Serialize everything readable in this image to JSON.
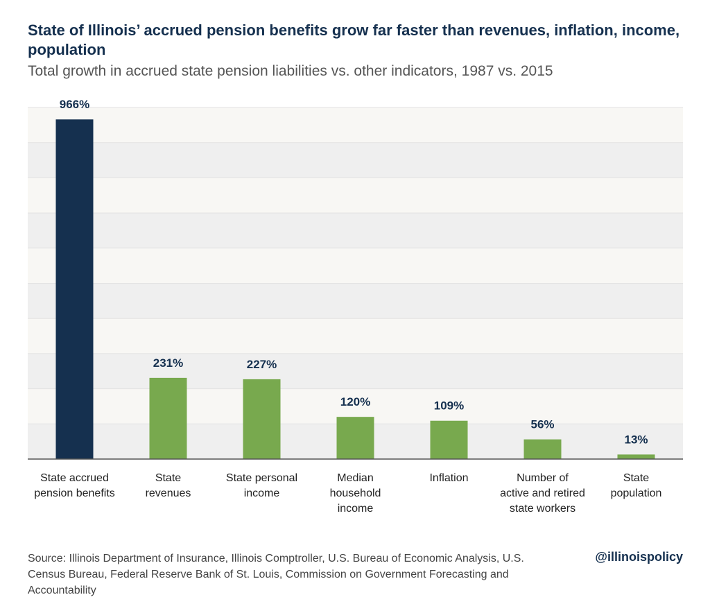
{
  "chart_data": {
    "type": "bar",
    "title": "State of Illinois’ accrued pension benefits grow far faster than revenues, inflation, income, population",
    "subtitle": "Total growth in accrued state pension liabilities vs. other indicators, 1987 vs. 2015",
    "categories": [
      "State accrued\npension benefits",
      "State\nrevenues",
      "State personal\nincome",
      "Median\nhousehold\nincome",
      "Inflation",
      "Number of\nactive and retired\nstate workers",
      "State\npopulation"
    ],
    "values": [
      966,
      231,
      227,
      120,
      109,
      56,
      13
    ],
    "value_labels": [
      "966%",
      "231%",
      "227%",
      "120%",
      "109%",
      "56%",
      "13%"
    ],
    "colors": [
      "#15304f",
      "#78a94e",
      "#78a94e",
      "#78a94e",
      "#78a94e",
      "#78a94e",
      "#78a94e"
    ],
    "ylim": [
      0,
      1000
    ],
    "yticks": [
      0,
      100,
      200,
      300,
      400,
      500,
      600,
      700,
      800,
      900,
      1000
    ],
    "grid": true,
    "source": "Source: Illinois Department of Insurance, Illinois Comptroller, U.S. Bureau of Economic Analysis, U.S. Census Bureau, Federal Reserve Bank of St. Louis, Commission on Government Forecasting and Accountability",
    "credit": "@illinoispolicy"
  }
}
